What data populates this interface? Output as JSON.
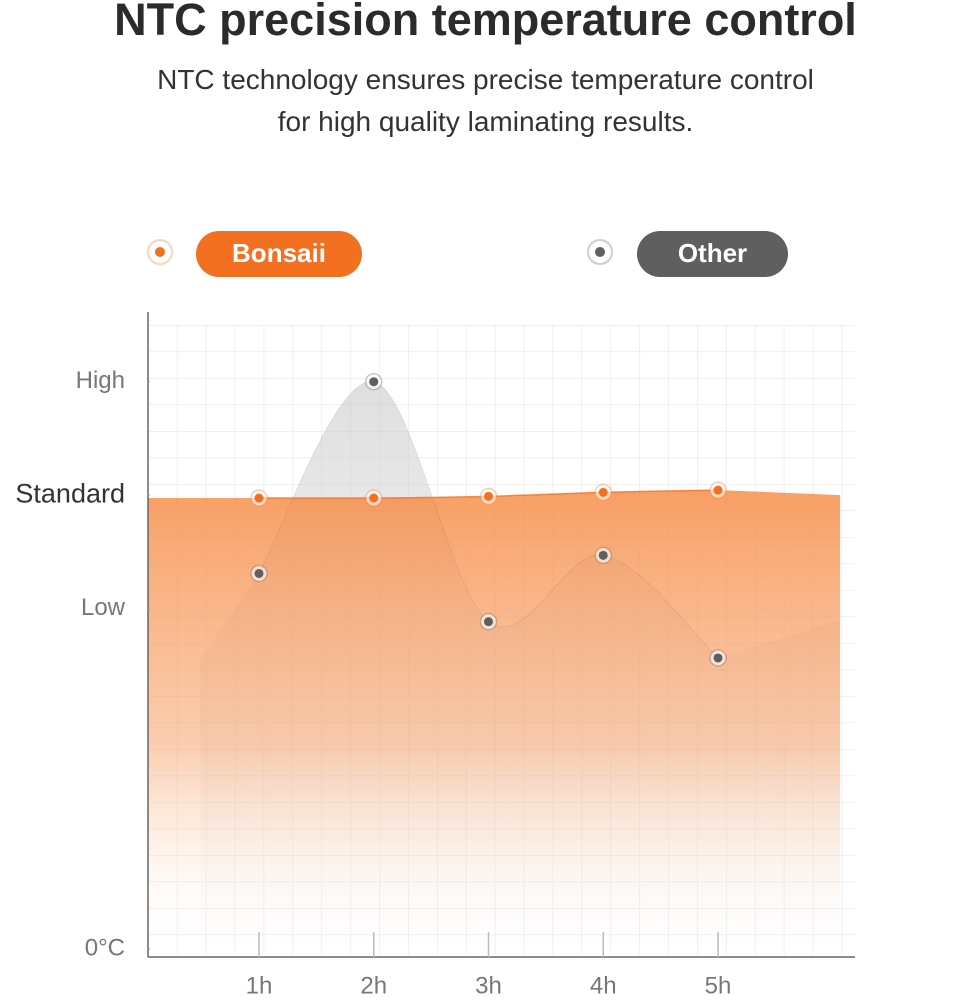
{
  "title": "NTC precision temperature control",
  "subtitle": [
    "NTC technology ensures precise temperature control",
    "for high quality laminating results."
  ],
  "chart_data": {
    "type": "area",
    "categories": [
      "1h",
      "2h",
      "3h",
      "4h",
      "5h"
    ],
    "series": [
      {
        "name": "Bonsaii",
        "color": "#f37021",
        "values": [
          79.5,
          79.5,
          79.8,
          80.5,
          80.9
        ]
      },
      {
        "name": "Other",
        "color": "#5f5f5f",
        "values": [
          66.2,
          100,
          57.7,
          69.4,
          51.3
        ]
      }
    ],
    "ylim": [
      0,
      110
    ],
    "yticks": [
      {
        "value": 0,
        "label": "0°C"
      },
      {
        "value": 60,
        "label": "Low"
      },
      {
        "value": 80,
        "label": "Standard"
      },
      {
        "value": 100,
        "label": "High"
      }
    ],
    "grid": true
  }
}
